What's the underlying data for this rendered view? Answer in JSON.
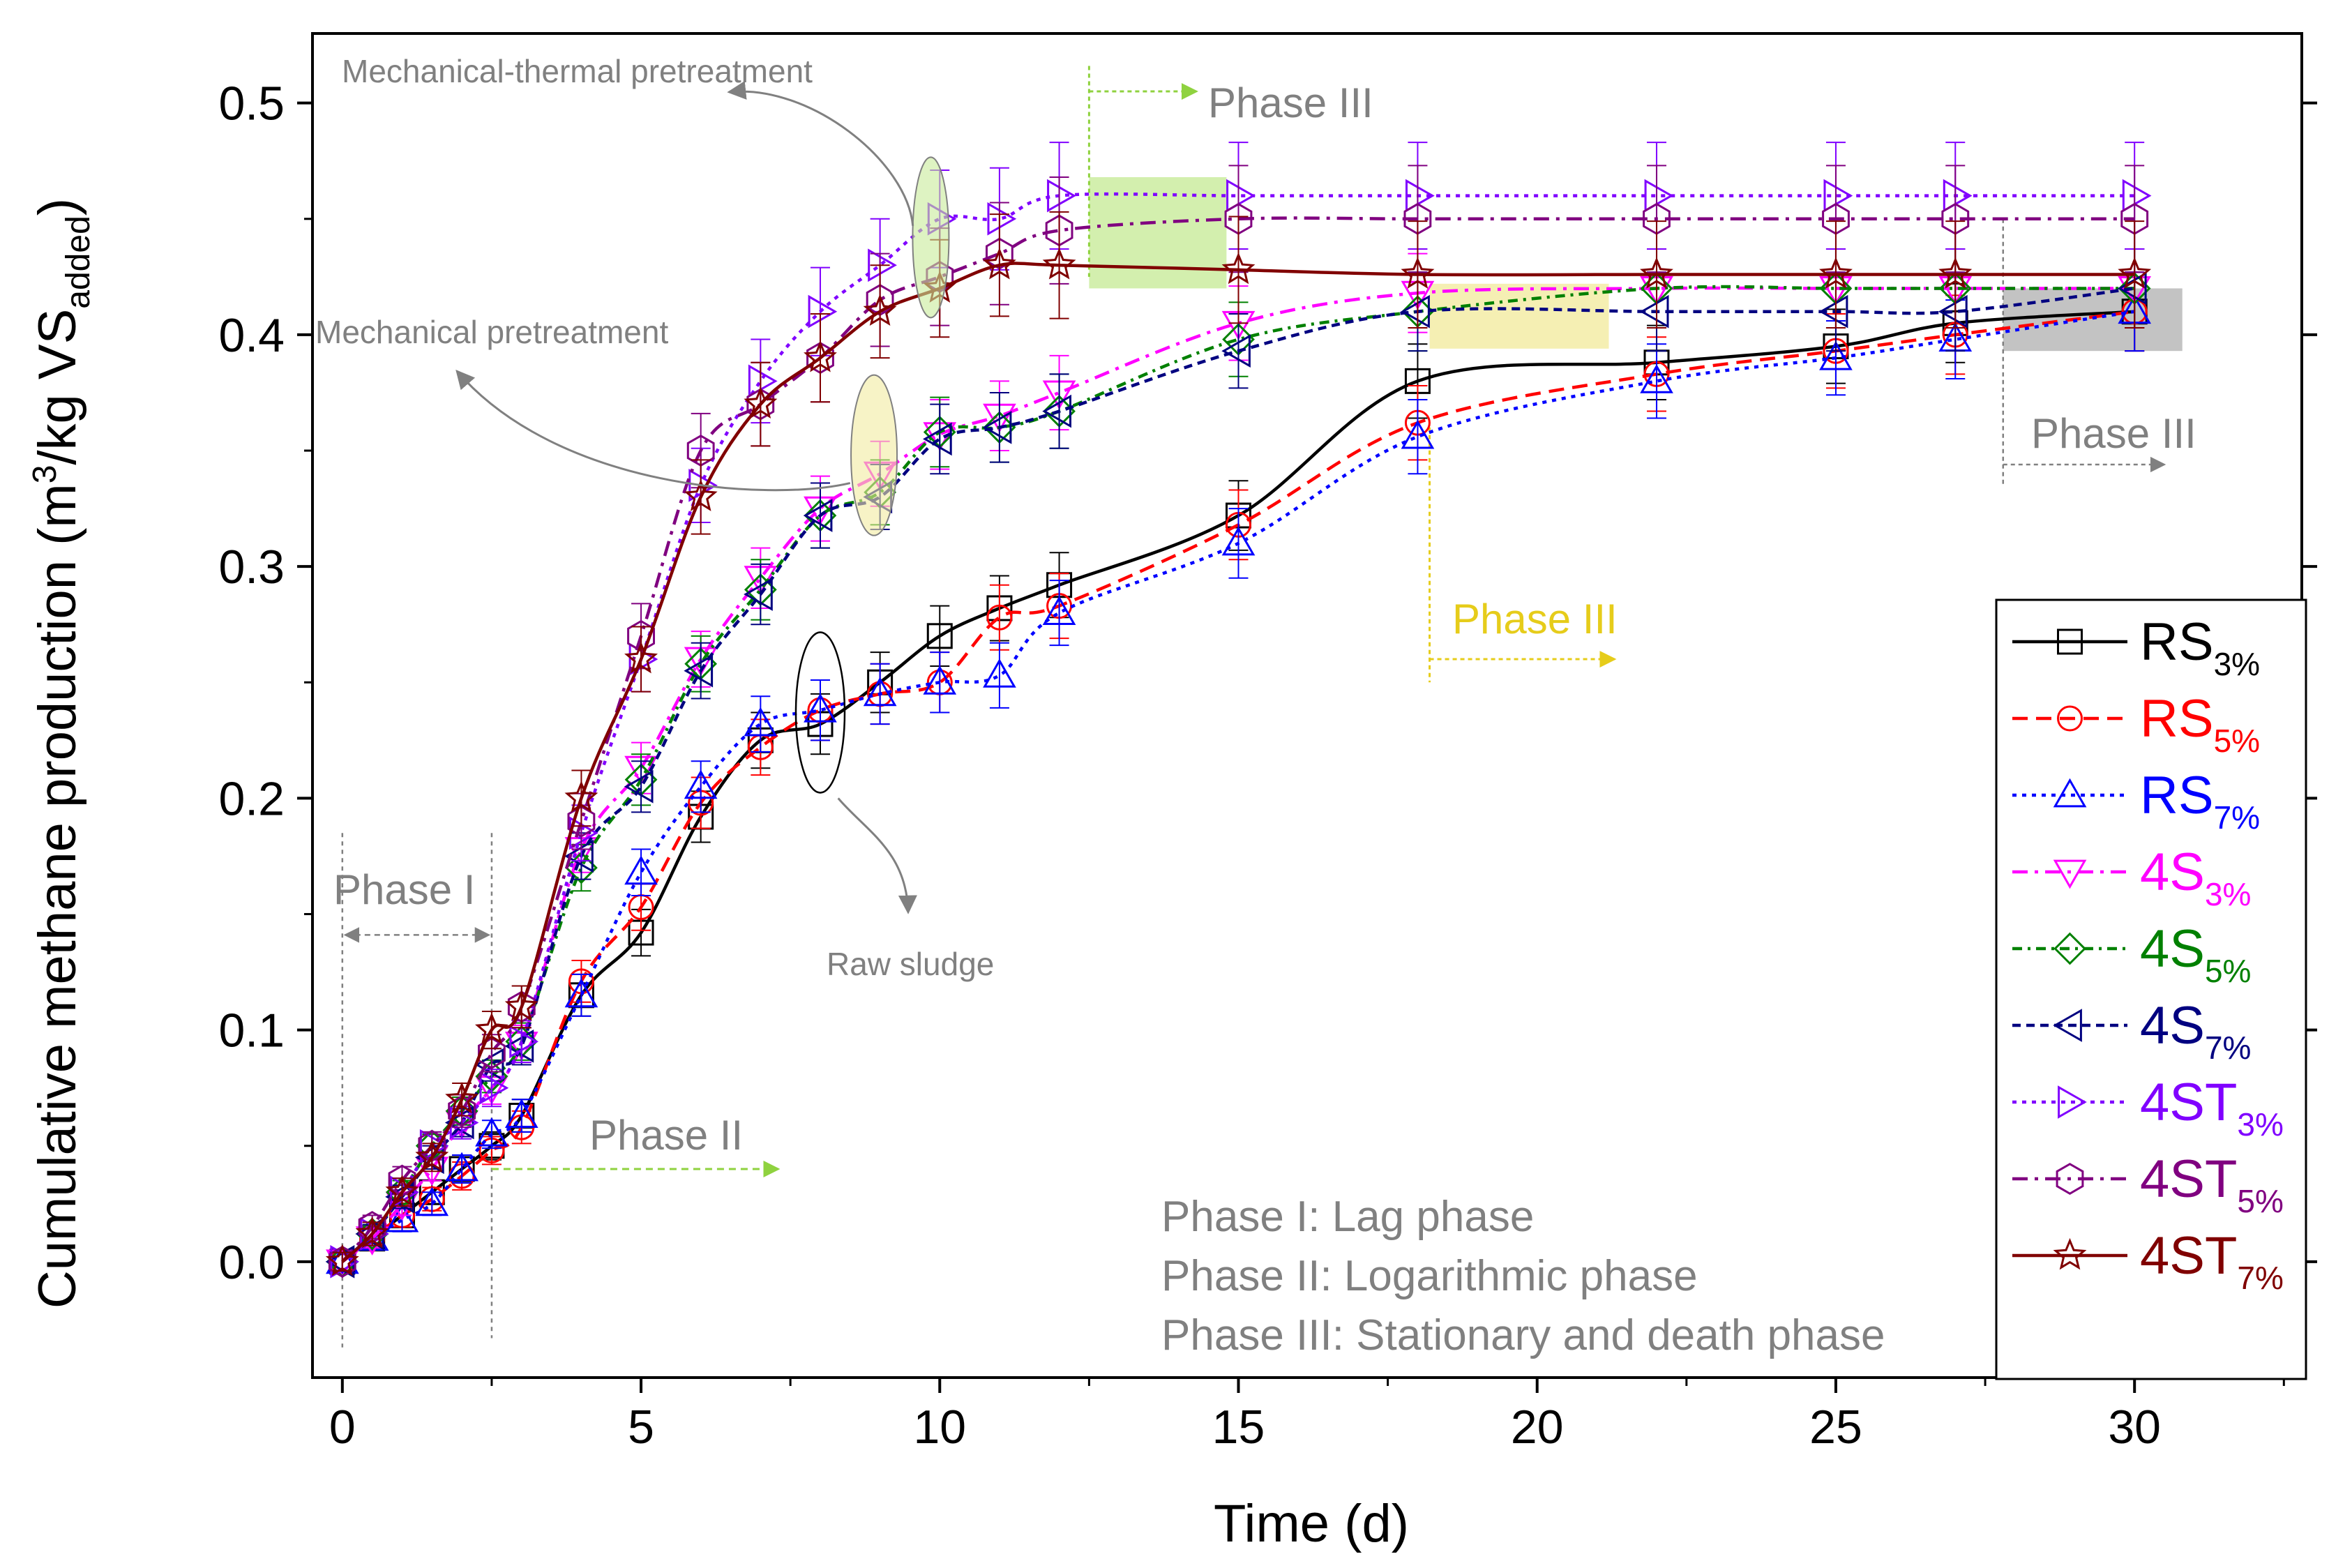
{
  "chart_data": {
    "type": "line",
    "xlabel": "Time (d)",
    "ylabel": "Cumulative methane production (m³/kg VSadded)",
    "ylabel_parts": {
      "prefix": "Cumulative methane production (m",
      "sup": "3",
      "mid": "/kg VS",
      "sub": "added",
      "suffix": ")"
    },
    "xlim": [
      -0.5,
      32.8
    ],
    "ylim": [
      -0.05,
      0.53
    ],
    "x_ticks": [
      "0",
      "5",
      "10",
      "15",
      "20",
      "25",
      "30"
    ],
    "y_ticks": [
      "0.0",
      "0.1",
      "0.2",
      "0.3",
      "0.4",
      "0.5"
    ],
    "grid": false,
    "legend_position": "bottom-right",
    "series": [
      {
        "name": "RS3%",
        "base": "RS",
        "sub": "3%",
        "color": "#000000",
        "marker": "square",
        "dash": "solid",
        "x": [
          0,
          0.5,
          1,
          1.5,
          2,
          2.5,
          3,
          4,
          5,
          6,
          7,
          8,
          9,
          10,
          11,
          12,
          15,
          18,
          22,
          25,
          27,
          30
        ],
        "y": [
          0,
          0.01,
          0.02,
          0.03,
          0.04,
          0.05,
          0.063,
          0.115,
          0.142,
          0.192,
          0.225,
          0.232,
          0.25,
          0.27,
          0.282,
          0.292,
          0.322,
          0.38,
          0.388,
          0.395,
          0.405,
          0.41
        ],
        "err": [
          0.004,
          0.004,
          0.005,
          0.005,
          0.006,
          0.006,
          0.007,
          0.009,
          0.01,
          0.011,
          0.012,
          0.013,
          0.013,
          0.013,
          0.014,
          0.014,
          0.015,
          0.016,
          0.016,
          0.016,
          0.017,
          0.017
        ]
      },
      {
        "name": "RS5%",
        "base": "RS",
        "sub": "5%",
        "color": "#ff0000",
        "marker": "circle",
        "dash": "dashed",
        "x": [
          0,
          0.5,
          1,
          1.5,
          2,
          2.5,
          3,
          4,
          5,
          6,
          7,
          8,
          9,
          10,
          11,
          12,
          15,
          18,
          22,
          25,
          27,
          30
        ],
        "y": [
          0,
          0.01,
          0.02,
          0.027,
          0.037,
          0.048,
          0.058,
          0.121,
          0.153,
          0.198,
          0.222,
          0.238,
          0.245,
          0.25,
          0.278,
          0.283,
          0.318,
          0.362,
          0.383,
          0.393,
          0.4,
          0.41
        ],
        "err": [
          0.004,
          0.004,
          0.005,
          0.005,
          0.006,
          0.006,
          0.007,
          0.009,
          0.01,
          0.011,
          0.012,
          0.013,
          0.013,
          0.013,
          0.014,
          0.014,
          0.015,
          0.016,
          0.016,
          0.016,
          0.017,
          0.017
        ]
      },
      {
        "name": "RS7%",
        "base": "RS",
        "sub": "7%",
        "color": "#0000ff",
        "marker": "triangle-up",
        "dash": "dotted",
        "x": [
          0,
          0.5,
          1,
          1.5,
          2,
          2.5,
          3,
          4,
          5,
          6,
          7,
          8,
          9,
          10,
          11,
          12,
          15,
          18,
          22,
          25,
          27,
          30
        ],
        "y": [
          0,
          0.01,
          0.018,
          0.025,
          0.04,
          0.055,
          0.063,
          0.115,
          0.168,
          0.205,
          0.232,
          0.238,
          0.245,
          0.25,
          0.253,
          0.28,
          0.31,
          0.356,
          0.38,
          0.39,
          0.398,
          0.41
        ],
        "err": [
          0.004,
          0.004,
          0.005,
          0.005,
          0.006,
          0.006,
          0.007,
          0.009,
          0.01,
          0.011,
          0.012,
          0.013,
          0.013,
          0.013,
          0.014,
          0.014,
          0.015,
          0.016,
          0.016,
          0.016,
          0.017,
          0.017
        ]
      },
      {
        "name": "4S3%",
        "base": "4S",
        "sub": "3%",
        "color": "#ff00ff",
        "marker": "triangle-down",
        "dash": "dashdot",
        "x": [
          0,
          0.5,
          1,
          1.5,
          2,
          2.5,
          3,
          4,
          5,
          6,
          7,
          8,
          9,
          10,
          11,
          12,
          15,
          18,
          22,
          25,
          27,
          30
        ],
        "y": [
          0,
          0.01,
          0.025,
          0.04,
          0.06,
          0.075,
          0.094,
          0.178,
          0.213,
          0.26,
          0.295,
          0.325,
          0.34,
          0.357,
          0.365,
          0.375,
          0.405,
          0.418,
          0.42,
          0.42,
          0.42,
          0.42
        ],
        "err": [
          0.004,
          0.004,
          0.005,
          0.005,
          0.006,
          0.007,
          0.008,
          0.01,
          0.011,
          0.012,
          0.013,
          0.014,
          0.014,
          0.015,
          0.015,
          0.016,
          0.016,
          0.017,
          0.017,
          0.017,
          0.017,
          0.017
        ]
      },
      {
        "name": "4S5%",
        "base": "4S",
        "sub": "5%",
        "color": "#008000",
        "marker": "diamond",
        "dash": "dashdot2",
        "x": [
          0,
          0.5,
          1,
          1.5,
          2,
          2.5,
          3,
          4,
          5,
          6,
          7,
          8,
          9,
          10,
          11,
          12,
          15,
          18,
          22,
          25,
          27,
          30
        ],
        "y": [
          0,
          0.012,
          0.03,
          0.05,
          0.065,
          0.08,
          0.095,
          0.17,
          0.208,
          0.258,
          0.29,
          0.322,
          0.332,
          0.358,
          0.36,
          0.367,
          0.398,
          0.41,
          0.42,
          0.42,
          0.42,
          0.42
        ],
        "err": [
          0.004,
          0.004,
          0.005,
          0.005,
          0.006,
          0.007,
          0.008,
          0.01,
          0.011,
          0.012,
          0.013,
          0.014,
          0.014,
          0.015,
          0.015,
          0.016,
          0.016,
          0.017,
          0.017,
          0.017,
          0.017,
          0.017
        ]
      },
      {
        "name": "4S7%",
        "base": "4S",
        "sub": "7%",
        "color": "#000080",
        "marker": "triangle-left",
        "dash": "dashed-short",
        "x": [
          0,
          0.5,
          1,
          1.5,
          2,
          2.5,
          3,
          4,
          5,
          6,
          7,
          8,
          9,
          10,
          11,
          12,
          15,
          18,
          22,
          25,
          27,
          30
        ],
        "y": [
          0,
          0.012,
          0.028,
          0.045,
          0.06,
          0.085,
          0.093,
          0.175,
          0.205,
          0.255,
          0.288,
          0.322,
          0.33,
          0.355,
          0.36,
          0.367,
          0.393,
          0.41,
          0.41,
          0.41,
          0.41,
          0.42
        ],
        "err": [
          0.004,
          0.004,
          0.005,
          0.005,
          0.006,
          0.007,
          0.008,
          0.01,
          0.011,
          0.012,
          0.013,
          0.014,
          0.014,
          0.015,
          0.015,
          0.016,
          0.016,
          0.017,
          0.017,
          0.017,
          0.017,
          0.017
        ]
      },
      {
        "name": "4ST3%",
        "base": "4ST",
        "sub": "3%",
        "color": "#8000ff",
        "marker": "triangle-right",
        "dash": "dotted",
        "x": [
          0,
          0.5,
          1,
          1.5,
          2,
          2.5,
          3,
          4,
          5,
          6,
          7,
          8,
          9,
          10,
          11,
          12,
          15,
          18,
          22,
          25,
          27,
          30
        ],
        "y": [
          0,
          0.012,
          0.03,
          0.05,
          0.06,
          0.075,
          0.095,
          0.185,
          0.26,
          0.335,
          0.38,
          0.41,
          0.43,
          0.45,
          0.45,
          0.46,
          0.46,
          0.46,
          0.46,
          0.46,
          0.46,
          0.46
        ],
        "err": [
          0.004,
          0.005,
          0.006,
          0.006,
          0.007,
          0.008,
          0.009,
          0.012,
          0.014,
          0.016,
          0.018,
          0.019,
          0.02,
          0.021,
          0.022,
          0.023,
          0.023,
          0.023,
          0.023,
          0.023,
          0.023,
          0.023
        ]
      },
      {
        "name": "4ST5%",
        "base": "4ST",
        "sub": "5%",
        "color": "#800080",
        "marker": "hexagon",
        "dash": "dashdot",
        "x": [
          0,
          0.5,
          1,
          1.5,
          2,
          2.5,
          3,
          4,
          5,
          6,
          7,
          8,
          9,
          10,
          11,
          12,
          15,
          18,
          22,
          25,
          27,
          30
        ],
        "y": [
          0,
          0.015,
          0.035,
          0.05,
          0.065,
          0.09,
          0.11,
          0.19,
          0.27,
          0.35,
          0.37,
          0.39,
          0.415,
          0.425,
          0.435,
          0.445,
          0.45,
          0.45,
          0.45,
          0.45,
          0.45,
          0.45
        ],
        "err": [
          0.004,
          0.005,
          0.006,
          0.006,
          0.007,
          0.008,
          0.009,
          0.012,
          0.014,
          0.016,
          0.018,
          0.019,
          0.02,
          0.021,
          0.022,
          0.023,
          0.023,
          0.023,
          0.023,
          0.023,
          0.023,
          0.023
        ]
      },
      {
        "name": "4ST7%",
        "base": "4ST",
        "sub": "7%",
        "color": "#800000",
        "marker": "star",
        "dash": "solid",
        "x": [
          0,
          0.5,
          1,
          1.5,
          2,
          2.5,
          3,
          4,
          5,
          6,
          7,
          8,
          9,
          10,
          11,
          12,
          15,
          18,
          22,
          25,
          27,
          30
        ],
        "y": [
          0,
          0.012,
          0.03,
          0.045,
          0.07,
          0.1,
          0.11,
          0.2,
          0.26,
          0.33,
          0.37,
          0.39,
          0.41,
          0.42,
          0.43,
          0.43,
          0.428,
          0.426,
          0.426,
          0.426,
          0.426,
          0.426
        ],
        "err": [
          0.004,
          0.005,
          0.006,
          0.006,
          0.007,
          0.008,
          0.009,
          0.012,
          0.014,
          0.016,
          0.018,
          0.019,
          0.02,
          0.021,
          0.022,
          0.023,
          0.023,
          0.023,
          0.023,
          0.023,
          0.023,
          0.023
        ]
      }
    ],
    "annotations": {
      "mechanical_thermal": "Mechanical-thermal pretreatment",
      "mechanical": "Mechanical pretreatment",
      "raw_sludge": "Raw sludge",
      "phase_1": "Phase I",
      "phase_2": "Phase II",
      "phase_3": "Phase III",
      "def_1": "Phase I: Lag phase",
      "def_2": "Phase II: Logarithmic phase",
      "def_3": "Phase III: Stationary and death phase"
    },
    "colors": {
      "grey": "#808080",
      "green_shade": "#c8eb9a",
      "yellow_shade": "#f2eba0",
      "grey_shade": "#bdbdbd",
      "green_arrow": "#8fd23f",
      "yellow_arrow": "#e6cc1a"
    }
  }
}
